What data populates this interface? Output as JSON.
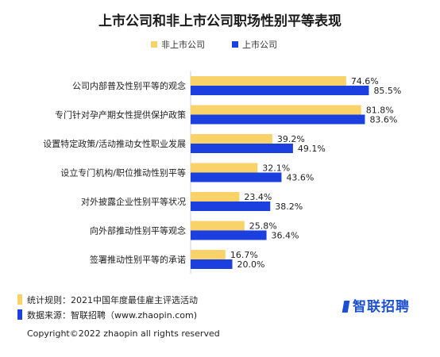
{
  "colors": {
    "unlisted": "#F9D36A",
    "listed": "#1C3FE0"
  },
  "chart_data": {
    "type": "bar",
    "orientation": "horizontal",
    "title": "上市公司和非上市公司职场性别平等表现",
    "legend_position": "top",
    "grid": false,
    "xlim": [
      0,
      100
    ],
    "categories": [
      "公司内部普及性别平等的观念",
      "专门针对孕产期女性提供保护政策",
      "设置特定政策/活动推动女性职业发展",
      "设立专门机构/职位推动性别平等",
      "对外披露企业性别平等状况",
      "向外部推动性别平等观念",
      "签署推动性别平等的承诺"
    ],
    "series": [
      {
        "name": "非上市公司",
        "values": [
          74.6,
          81.8,
          39.2,
          32.1,
          23.4,
          25.8,
          16.7
        ],
        "labels": [
          "74.6%",
          "81.8%",
          "39.2%",
          "32.1%",
          "23.4%",
          "25.8%",
          "16.7%"
        ]
      },
      {
        "name": "上市公司",
        "values": [
          85.5,
          83.6,
          49.1,
          43.6,
          38.2,
          36.4,
          20.0
        ],
        "labels": [
          "85.5%",
          "83.6%",
          "49.1%",
          "43.6%",
          "38.2%",
          "36.4%",
          "20.0%"
        ]
      }
    ]
  },
  "notes": {
    "stats_rule": "统计规则：2021中国年度最佳雇主评选活动",
    "source": "数据来源：智联招聘（www.zhaopin.com)"
  },
  "copyright": "Copyright©2022 zhaopin all rights reserved",
  "logo": {
    "text": "智联招聘"
  }
}
